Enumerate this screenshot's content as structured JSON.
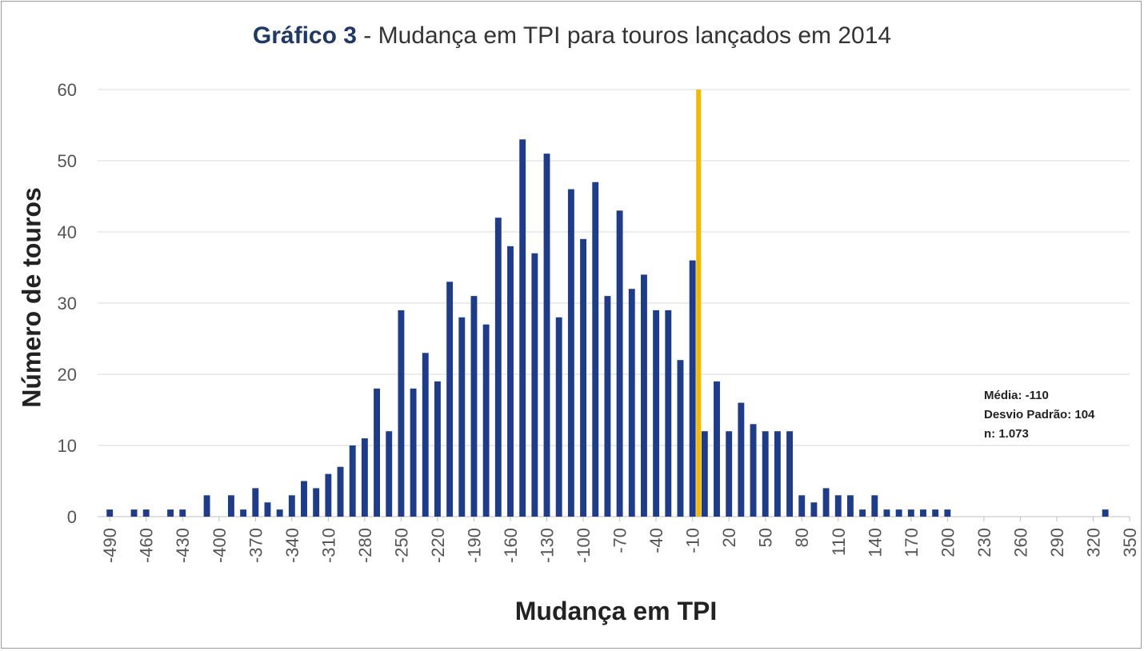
{
  "chart_data": {
    "type": "bar",
    "title_lead": "Gráfico 3",
    "title_rest": " - Mudança em TPI para touros lançados em 2014",
    "xlabel": "Mudança em TPI",
    "ylabel": "Número de touros",
    "ylim": [
      0,
      60
    ],
    "yticks": [
      0,
      10,
      20,
      30,
      40,
      50,
      60
    ],
    "xlim": [
      -500,
      350
    ],
    "xticks": [
      -490,
      -460,
      -430,
      -400,
      -370,
      -340,
      -310,
      -280,
      -250,
      -220,
      -190,
      -160,
      -130,
      -100,
      -70,
      -40,
      -10,
      20,
      50,
      80,
      110,
      140,
      170,
      200,
      230,
      260,
      290,
      320,
      350
    ],
    "bin_width": 10,
    "grid": true,
    "bar_color": "#1f3c88",
    "points": [
      {
        "x": -490,
        "y": 1
      },
      {
        "x": -470,
        "y": 1
      },
      {
        "x": -460,
        "y": 1
      },
      {
        "x": -440,
        "y": 1
      },
      {
        "x": -430,
        "y": 1
      },
      {
        "x": -410,
        "y": 3
      },
      {
        "x": -390,
        "y": 3
      },
      {
        "x": -380,
        "y": 1
      },
      {
        "x": -370,
        "y": 4
      },
      {
        "x": -360,
        "y": 2
      },
      {
        "x": -350,
        "y": 1
      },
      {
        "x": -340,
        "y": 3
      },
      {
        "x": -330,
        "y": 5
      },
      {
        "x": -320,
        "y": 4
      },
      {
        "x": -310,
        "y": 6
      },
      {
        "x": -300,
        "y": 7
      },
      {
        "x": -290,
        "y": 10
      },
      {
        "x": -280,
        "y": 11
      },
      {
        "x": -270,
        "y": 18
      },
      {
        "x": -260,
        "y": 12
      },
      {
        "x": -250,
        "y": 29
      },
      {
        "x": -240,
        "y": 18
      },
      {
        "x": -230,
        "y": 23
      },
      {
        "x": -220,
        "y": 19
      },
      {
        "x": -210,
        "y": 33
      },
      {
        "x": -200,
        "y": 28
      },
      {
        "x": -190,
        "y": 31
      },
      {
        "x": -180,
        "y": 27
      },
      {
        "x": -170,
        "y": 42
      },
      {
        "x": -160,
        "y": 38
      },
      {
        "x": -150,
        "y": 53
      },
      {
        "x": -140,
        "y": 37
      },
      {
        "x": -130,
        "y": 51
      },
      {
        "x": -120,
        "y": 28
      },
      {
        "x": -110,
        "y": 46
      },
      {
        "x": -100,
        "y": 39
      },
      {
        "x": -90,
        "y": 47
      },
      {
        "x": -80,
        "y": 31
      },
      {
        "x": -70,
        "y": 43
      },
      {
        "x": -60,
        "y": 32
      },
      {
        "x": -50,
        "y": 34
      },
      {
        "x": -40,
        "y": 29
      },
      {
        "x": -30,
        "y": 29
      },
      {
        "x": -20,
        "y": 22
      },
      {
        "x": -10,
        "y": 36
      },
      {
        "x": 0,
        "y": 12
      },
      {
        "x": 10,
        "y": 19
      },
      {
        "x": 20,
        "y": 12
      },
      {
        "x": 30,
        "y": 16
      },
      {
        "x": 40,
        "y": 13
      },
      {
        "x": 50,
        "y": 12
      },
      {
        "x": 60,
        "y": 12
      },
      {
        "x": 70,
        "y": 12
      },
      {
        "x": 80,
        "y": 3
      },
      {
        "x": 90,
        "y": 2
      },
      {
        "x": 100,
        "y": 4
      },
      {
        "x": 110,
        "y": 3
      },
      {
        "x": 120,
        "y": 3
      },
      {
        "x": 130,
        "y": 1
      },
      {
        "x": 140,
        "y": 3
      },
      {
        "x": 150,
        "y": 1
      },
      {
        "x": 160,
        "y": 1
      },
      {
        "x": 170,
        "y": 1
      },
      {
        "x": 180,
        "y": 1
      },
      {
        "x": 190,
        "y": 1
      },
      {
        "x": 200,
        "y": 1
      },
      {
        "x": 330,
        "y": 1
      }
    ],
    "reference_line": {
      "x": -5,
      "color": "#f5b800"
    },
    "annotation": [
      "Média: -110",
      "Desvio Padrão: 104",
      "n: 1.073"
    ]
  }
}
